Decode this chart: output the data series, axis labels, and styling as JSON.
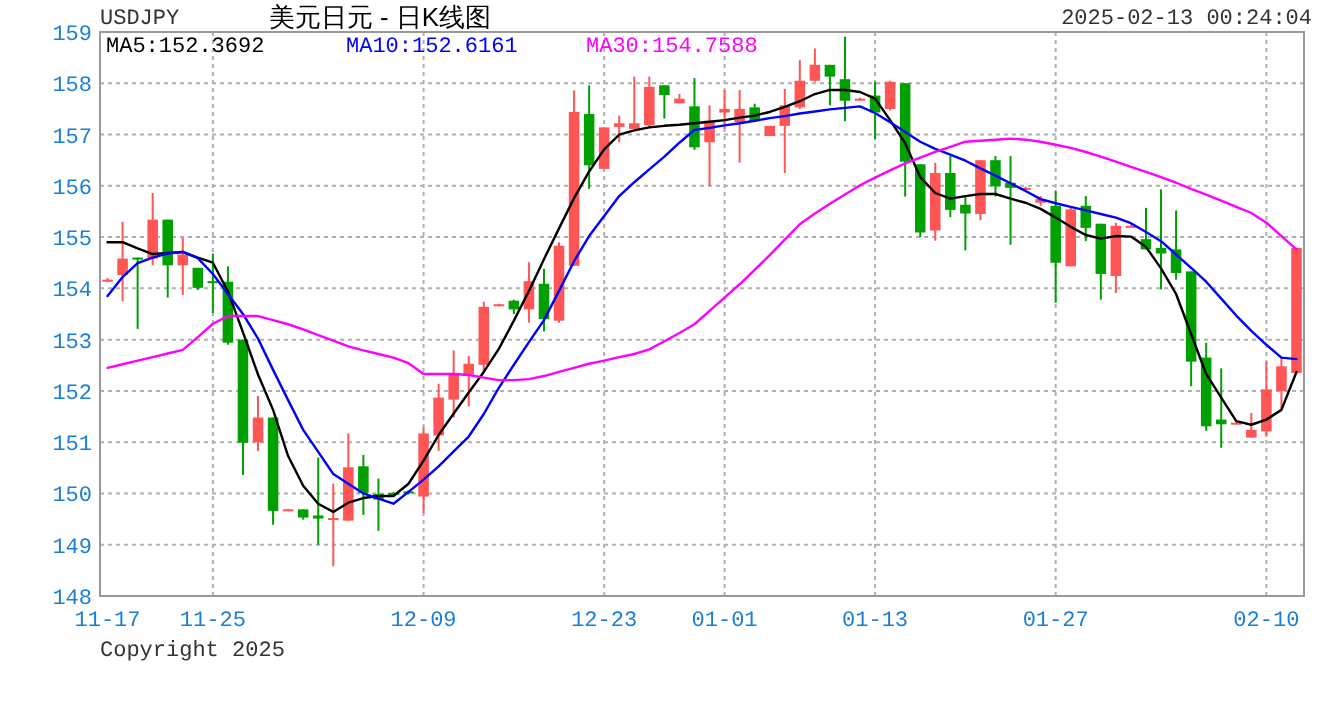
{
  "chart_data": {
    "type": "candlestick",
    "title": "美元日元 - 日K线图",
    "annotations": [
      "USDJPY",
      "2025-02-13 00:24:04",
      "Copyright 2025"
    ],
    "categories": [
      "11-17",
      null,
      null,
      null,
      null,
      null,
      null,
      "11-25",
      null,
      null,
      null,
      null,
      null,
      null,
      null,
      null,
      null,
      null,
      null,
      null,
      null,
      "12-09",
      null,
      null,
      null,
      null,
      null,
      null,
      null,
      null,
      null,
      null,
      null,
      "12-23",
      null,
      null,
      null,
      null,
      null,
      null,
      null,
      "01-01",
      null,
      null,
      null,
      null,
      null,
      null,
      null,
      null,
      null,
      "01-13",
      null,
      null,
      null,
      null,
      null,
      null,
      null,
      null,
      null,
      null,
      null,
      "01-27",
      null,
      null,
      null,
      null,
      null,
      null,
      null,
      null,
      null,
      null,
      null,
      null,
      null,
      "02-10",
      null,
      null
    ],
    "ohlc": [
      [
        154.16,
        154.2,
        154.12,
        154.17
      ],
      [
        154.26,
        155.3,
        153.75,
        154.58
      ],
      [
        154.6,
        154.6,
        153.21,
        154.58
      ],
      [
        154.58,
        155.86,
        154.45,
        155.34
      ],
      [
        155.34,
        155.34,
        153.82,
        154.45
      ],
      [
        154.45,
        154.99,
        153.87,
        154.66
      ],
      [
        154.4,
        154.4,
        153.97,
        154.01
      ],
      [
        154.14,
        154.68,
        153.52,
        154.13
      ],
      [
        154.13,
        154.43,
        152.9,
        152.94
      ],
      [
        153.0,
        153.0,
        150.36,
        150.99
      ],
      [
        151.0,
        151.9,
        150.83,
        151.48
      ],
      [
        151.48,
        151.48,
        149.39,
        149.66
      ],
      [
        149.68,
        149.7,
        149.68,
        149.69
      ],
      [
        149.69,
        149.69,
        149.49,
        149.53
      ],
      [
        149.57,
        150.7,
        149.0,
        149.51
      ],
      [
        149.51,
        150.19,
        148.58,
        149.52
      ],
      [
        149.47,
        151.17,
        149.47,
        150.51
      ],
      [
        150.53,
        150.75,
        149.58,
        150.01
      ],
      [
        149.99,
        150.29,
        149.27,
        149.88
      ],
      [
        150.01,
        150.03,
        149.97,
        149.97
      ],
      [
        150.04,
        150.06,
        149.98,
        150.01
      ],
      [
        149.94,
        151.29,
        149.62,
        151.17
      ],
      [
        151.13,
        152.14,
        150.83,
        151.87
      ],
      [
        151.83,
        152.79,
        151.48,
        152.35
      ],
      [
        152.32,
        152.68,
        151.7,
        152.53
      ],
      [
        152.51,
        153.74,
        152.35,
        153.64
      ],
      [
        153.68,
        153.7,
        153.66,
        153.69
      ],
      [
        153.76,
        153.78,
        153.5,
        153.59
      ],
      [
        153.59,
        154.51,
        153.33,
        154.14
      ],
      [
        154.09,
        154.38,
        153.16,
        153.4
      ],
      [
        153.37,
        154.9,
        153.33,
        154.83
      ],
      [
        154.44,
        157.86,
        154.44,
        157.44
      ],
      [
        157.4,
        157.96,
        155.94,
        156.4
      ],
      [
        156.33,
        157.14,
        156.33,
        157.14
      ],
      [
        157.15,
        157.37,
        156.85,
        157.22
      ],
      [
        157.11,
        158.13,
        157.11,
        157.22
      ],
      [
        157.18,
        158.13,
        157.15,
        157.93
      ],
      [
        157.96,
        157.96,
        157.31,
        157.77
      ],
      [
        157.61,
        157.79,
        157.61,
        157.7
      ],
      [
        157.55,
        158.1,
        156.7,
        156.75
      ],
      [
        156.85,
        157.57,
        156.0,
        157.27
      ],
      [
        157.43,
        157.87,
        157.11,
        157.5
      ],
      [
        157.24,
        157.87,
        156.45,
        157.5
      ],
      [
        157.53,
        157.6,
        157.24,
        157.26
      ],
      [
        156.97,
        157.17,
        156.97,
        157.17
      ],
      [
        157.17,
        157.89,
        156.25,
        157.57
      ],
      [
        157.53,
        158.45,
        157.5,
        158.05
      ],
      [
        158.05,
        158.68,
        158.03,
        158.36
      ],
      [
        158.36,
        158.36,
        157.57,
        158.13
      ],
      [
        158.08,
        158.91,
        157.26,
        157.66
      ],
      [
        157.68,
        157.72,
        157.66,
        157.7
      ],
      [
        157.76,
        158.03,
        156.91,
        157.43
      ],
      [
        157.5,
        158.05,
        157.47,
        158.03
      ],
      [
        158.0,
        158.0,
        155.79,
        156.47
      ],
      [
        156.42,
        156.42,
        155.0,
        155.09
      ],
      [
        155.13,
        156.45,
        154.93,
        156.25
      ],
      [
        156.25,
        156.58,
        155.39,
        155.53
      ],
      [
        155.63,
        155.82,
        154.74,
        155.46
      ],
      [
        155.45,
        156.5,
        155.33,
        156.5
      ],
      [
        156.5,
        156.58,
        155.79,
        155.99
      ],
      [
        156.06,
        156.58,
        154.85,
        155.96
      ],
      [
        155.93,
        155.98,
        155.92,
        155.96
      ],
      [
        155.67,
        155.8,
        155.61,
        155.74
      ],
      [
        155.61,
        155.91,
        153.72,
        154.5
      ],
      [
        154.43,
        155.57,
        154.43,
        155.54
      ],
      [
        155.61,
        155.8,
        154.92,
        155.18
      ],
      [
        155.26,
        155.26,
        153.78,
        154.28
      ],
      [
        154.24,
        155.28,
        153.91,
        155.22
      ],
      [
        155.21,
        155.24,
        155.2,
        155.22
      ],
      [
        154.96,
        155.57,
        154.76,
        154.76
      ],
      [
        154.79,
        155.93,
        153.98,
        154.68
      ],
      [
        154.76,
        155.52,
        154.17,
        154.3
      ],
      [
        154.33,
        154.33,
        152.09,
        152.57
      ],
      [
        152.65,
        152.94,
        151.22,
        151.31
      ],
      [
        151.44,
        152.44,
        150.89,
        151.35
      ],
      [
        151.37,
        151.4,
        151.36,
        151.38
      ],
      [
        151.09,
        151.57,
        151.09,
        151.24
      ],
      [
        151.21,
        152.57,
        151.11,
        152.03
      ],
      [
        152.0,
        152.65,
        151.64,
        152.48
      ],
      [
        152.35,
        154.79,
        152.35,
        154.79
      ]
    ],
    "colors": [
      "#ff5555",
      "#ff5555",
      "#00a000",
      "#ff5555",
      "#00a000",
      "#ff5555",
      "#00a000",
      "#00a000",
      "#00a000",
      "#00a000",
      "#ff5555",
      "#00a000",
      "#ff5555",
      "#00a000",
      "#00a000",
      "#ff5555",
      "#ff5555",
      "#00a000",
      "#00a000",
      "#00a000",
      "#00a000",
      "#ff5555",
      "#ff5555",
      "#ff5555",
      "#ff5555",
      "#ff5555",
      "#ff5555",
      "#00a000",
      "#ff5555",
      "#00a000",
      "#ff5555",
      "#ff5555",
      "#00a000",
      "#ff5555",
      "#ff5555",
      "#ff5555",
      "#ff5555",
      "#00a000",
      "#ff5555",
      "#00a000",
      "#ff5555",
      "#ff5555",
      "#ff5555",
      "#00a000",
      "#ff5555",
      "#ff5555",
      "#ff5555",
      "#ff5555",
      "#00a000",
      "#00a000",
      "#ff5555",
      "#00a000",
      "#ff5555",
      "#00a000",
      "#00a000",
      "#ff5555",
      "#00a000",
      "#00a000",
      "#ff5555",
      "#00a000",
      "#00a000",
      "#ff5555",
      "#ff5555",
      "#00a000",
      "#ff5555",
      "#00a000",
      "#00a000",
      "#ff5555",
      "#ff5555",
      "#00a000",
      "#00a000",
      "#00a000",
      "#00a000",
      "#00a000",
      "#00a000",
      "#ff5555",
      "#ff5555",
      "#ff5555",
      "#ff5555",
      "#ff5555"
    ],
    "series": [
      {
        "name": "MA5:152.3692",
        "type": "line",
        "color": "#000000",
        "values": [
          154.9,
          154.9,
          154.78,
          154.67,
          154.69,
          154.71,
          154.6,
          154.5,
          153.94,
          153.14,
          152.32,
          151.63,
          150.73,
          150.15,
          149.8,
          149.64,
          149.82,
          149.91,
          149.95,
          149.95,
          150.19,
          150.64,
          151.14,
          151.56,
          151.97,
          152.37,
          152.82,
          153.37,
          153.95,
          154.57,
          155.17,
          155.76,
          156.28,
          156.71,
          157.0,
          157.08,
          157.14,
          157.17,
          157.19,
          157.22,
          157.25,
          157.28,
          157.33,
          157.37,
          157.44,
          157.54,
          157.65,
          157.79,
          157.87,
          157.87,
          157.83,
          157.7,
          157.28,
          156.83,
          156.17,
          155.86,
          155.75,
          155.8,
          155.84,
          155.84,
          155.75,
          155.67,
          155.55,
          155.38,
          155.2,
          155.04,
          154.97,
          155.02,
          155.01,
          154.81,
          154.39,
          153.89,
          153.11,
          152.33,
          151.87,
          151.41,
          151.34,
          151.44,
          151.63,
          152.37
        ]
      },
      {
        "name": "MA10:152.6161",
        "type": "line",
        "color": "#0000ff",
        "values": [
          153.85,
          154.22,
          154.49,
          154.6,
          154.68,
          154.71,
          154.59,
          154.28,
          153.89,
          153.5,
          153.02,
          152.41,
          151.82,
          151.24,
          150.81,
          150.38,
          150.19,
          150.0,
          149.9,
          149.8,
          150.03,
          150.27,
          150.53,
          150.82,
          151.11,
          151.55,
          152.06,
          152.51,
          152.95,
          153.38,
          153.95,
          154.53,
          155.02,
          155.41,
          155.8,
          156.07,
          156.32,
          156.57,
          156.84,
          157.09,
          157.13,
          157.18,
          157.22,
          157.27,
          157.32,
          157.36,
          157.41,
          157.45,
          157.49,
          157.52,
          157.55,
          157.42,
          157.24,
          157.05,
          156.86,
          156.72,
          156.61,
          156.49,
          156.34,
          156.2,
          156.05,
          155.9,
          155.74,
          155.66,
          155.59,
          155.52,
          155.45,
          155.38,
          155.27,
          155.1,
          154.92,
          154.66,
          154.4,
          154.13,
          153.8,
          153.47,
          153.17,
          152.9,
          152.65,
          152.62
        ]
      },
      {
        "name": "MA30:154.7588",
        "type": "line",
        "color": "#ff00ff",
        "values": [
          152.45,
          152.52,
          152.59,
          152.66,
          152.73,
          152.8,
          153.05,
          153.31,
          153.46,
          153.46,
          153.46,
          153.38,
          153.3,
          153.2,
          153.09,
          152.98,
          152.87,
          152.79,
          152.72,
          152.65,
          152.54,
          152.33,
          152.33,
          152.33,
          152.31,
          152.26,
          152.21,
          152.21,
          152.23,
          152.29,
          152.37,
          152.45,
          152.53,
          152.59,
          152.66,
          152.72,
          152.81,
          152.97,
          153.13,
          153.3,
          153.56,
          153.82,
          154.08,
          154.36,
          154.65,
          154.95,
          155.25,
          155.46,
          155.65,
          155.83,
          156.01,
          156.16,
          156.3,
          156.44,
          156.55,
          156.66,
          156.76,
          156.86,
          156.88,
          156.9,
          156.92,
          156.9,
          156.86,
          156.8,
          156.74,
          156.66,
          156.57,
          156.47,
          156.37,
          156.27,
          156.17,
          156.06,
          155.94,
          155.83,
          155.71,
          155.59,
          155.47,
          155.28,
          155.02,
          154.76
        ]
      }
    ],
    "ylim": [
      148,
      159
    ],
    "yticks": [
      148,
      149,
      150,
      151,
      152,
      153,
      154,
      155,
      156,
      157,
      158,
      159
    ],
    "grid": true,
    "legend": "top left"
  }
}
